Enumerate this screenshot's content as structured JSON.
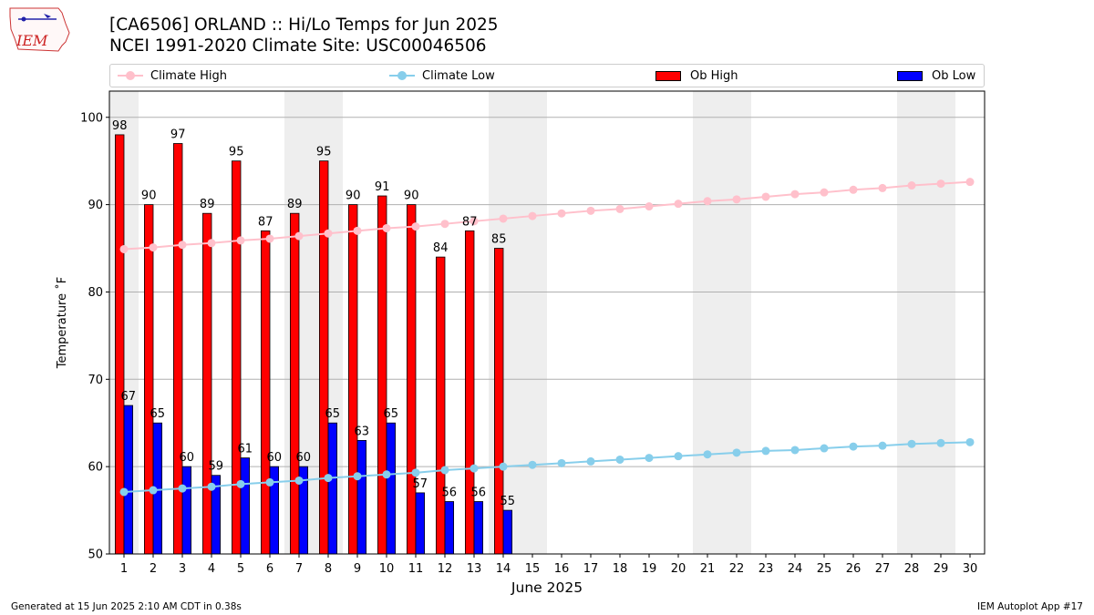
{
  "header": {
    "title_line1": "[CA6506] ORLAND :: Hi/Lo Temps for Jun 2025",
    "title_line2": "NCEI 1991-2020 Climate Site: USC00046506",
    "logo_text": "IEM"
  },
  "legend": {
    "climate_high": "Climate High",
    "climate_low": "Climate Low",
    "ob_high": "Ob High",
    "ob_low": "Ob Low"
  },
  "footer": {
    "generated": "Generated at 15 Jun 2025 2:10 AM CDT in 0.38s",
    "app": "IEM Autoplot App #17"
  },
  "colors": {
    "ob_high": "#ff0000",
    "ob_low": "#0000ff",
    "climate_high": "#ffc0cb",
    "climate_low": "#87ceeb",
    "weekend_shade": "#eeeeee",
    "grid": "#b0b0b0"
  },
  "chart_data": {
    "type": "bar",
    "xlabel": "June 2025",
    "ylabel": "Temperature ˚F",
    "ylim": [
      50,
      103
    ],
    "yticks": [
      50,
      60,
      70,
      80,
      90,
      100
    ],
    "xlim": [
      0.5,
      30.5
    ],
    "grid": "y",
    "legend_position": "top",
    "weekend_days": [
      1,
      7,
      8,
      14,
      15,
      21,
      22,
      28,
      29
    ],
    "x": [
      1,
      2,
      3,
      4,
      5,
      6,
      7,
      8,
      9,
      10,
      11,
      12,
      13,
      14,
      15,
      16,
      17,
      18,
      19,
      20,
      21,
      22,
      23,
      24,
      25,
      26,
      27,
      28,
      29,
      30
    ],
    "ob_high": [
      98,
      90,
      97,
      89,
      95,
      87,
      89,
      95,
      90,
      91,
      90,
      84,
      87,
      85
    ],
    "ob_low": [
      67,
      65,
      60,
      59,
      61,
      60,
      60,
      65,
      63,
      65,
      57,
      56,
      56,
      55
    ],
    "climate_high": [
      84.9,
      85.1,
      85.4,
      85.6,
      85.9,
      86.1,
      86.4,
      86.7,
      87.0,
      87.3,
      87.5,
      87.8,
      88.1,
      88.4,
      88.7,
      89.0,
      89.3,
      89.5,
      89.8,
      90.1,
      90.4,
      90.6,
      90.9,
      91.2,
      91.4,
      91.7,
      91.9,
      92.2,
      92.4,
      92.6
    ],
    "climate_low": [
      57.1,
      57.3,
      57.5,
      57.7,
      58.0,
      58.2,
      58.4,
      58.7,
      58.9,
      59.1,
      59.3,
      59.6,
      59.8,
      60.0,
      60.2,
      60.4,
      60.6,
      60.8,
      61.0,
      61.2,
      61.4,
      61.6,
      61.8,
      61.9,
      62.1,
      62.3,
      62.4,
      62.6,
      62.7,
      62.8
    ]
  }
}
